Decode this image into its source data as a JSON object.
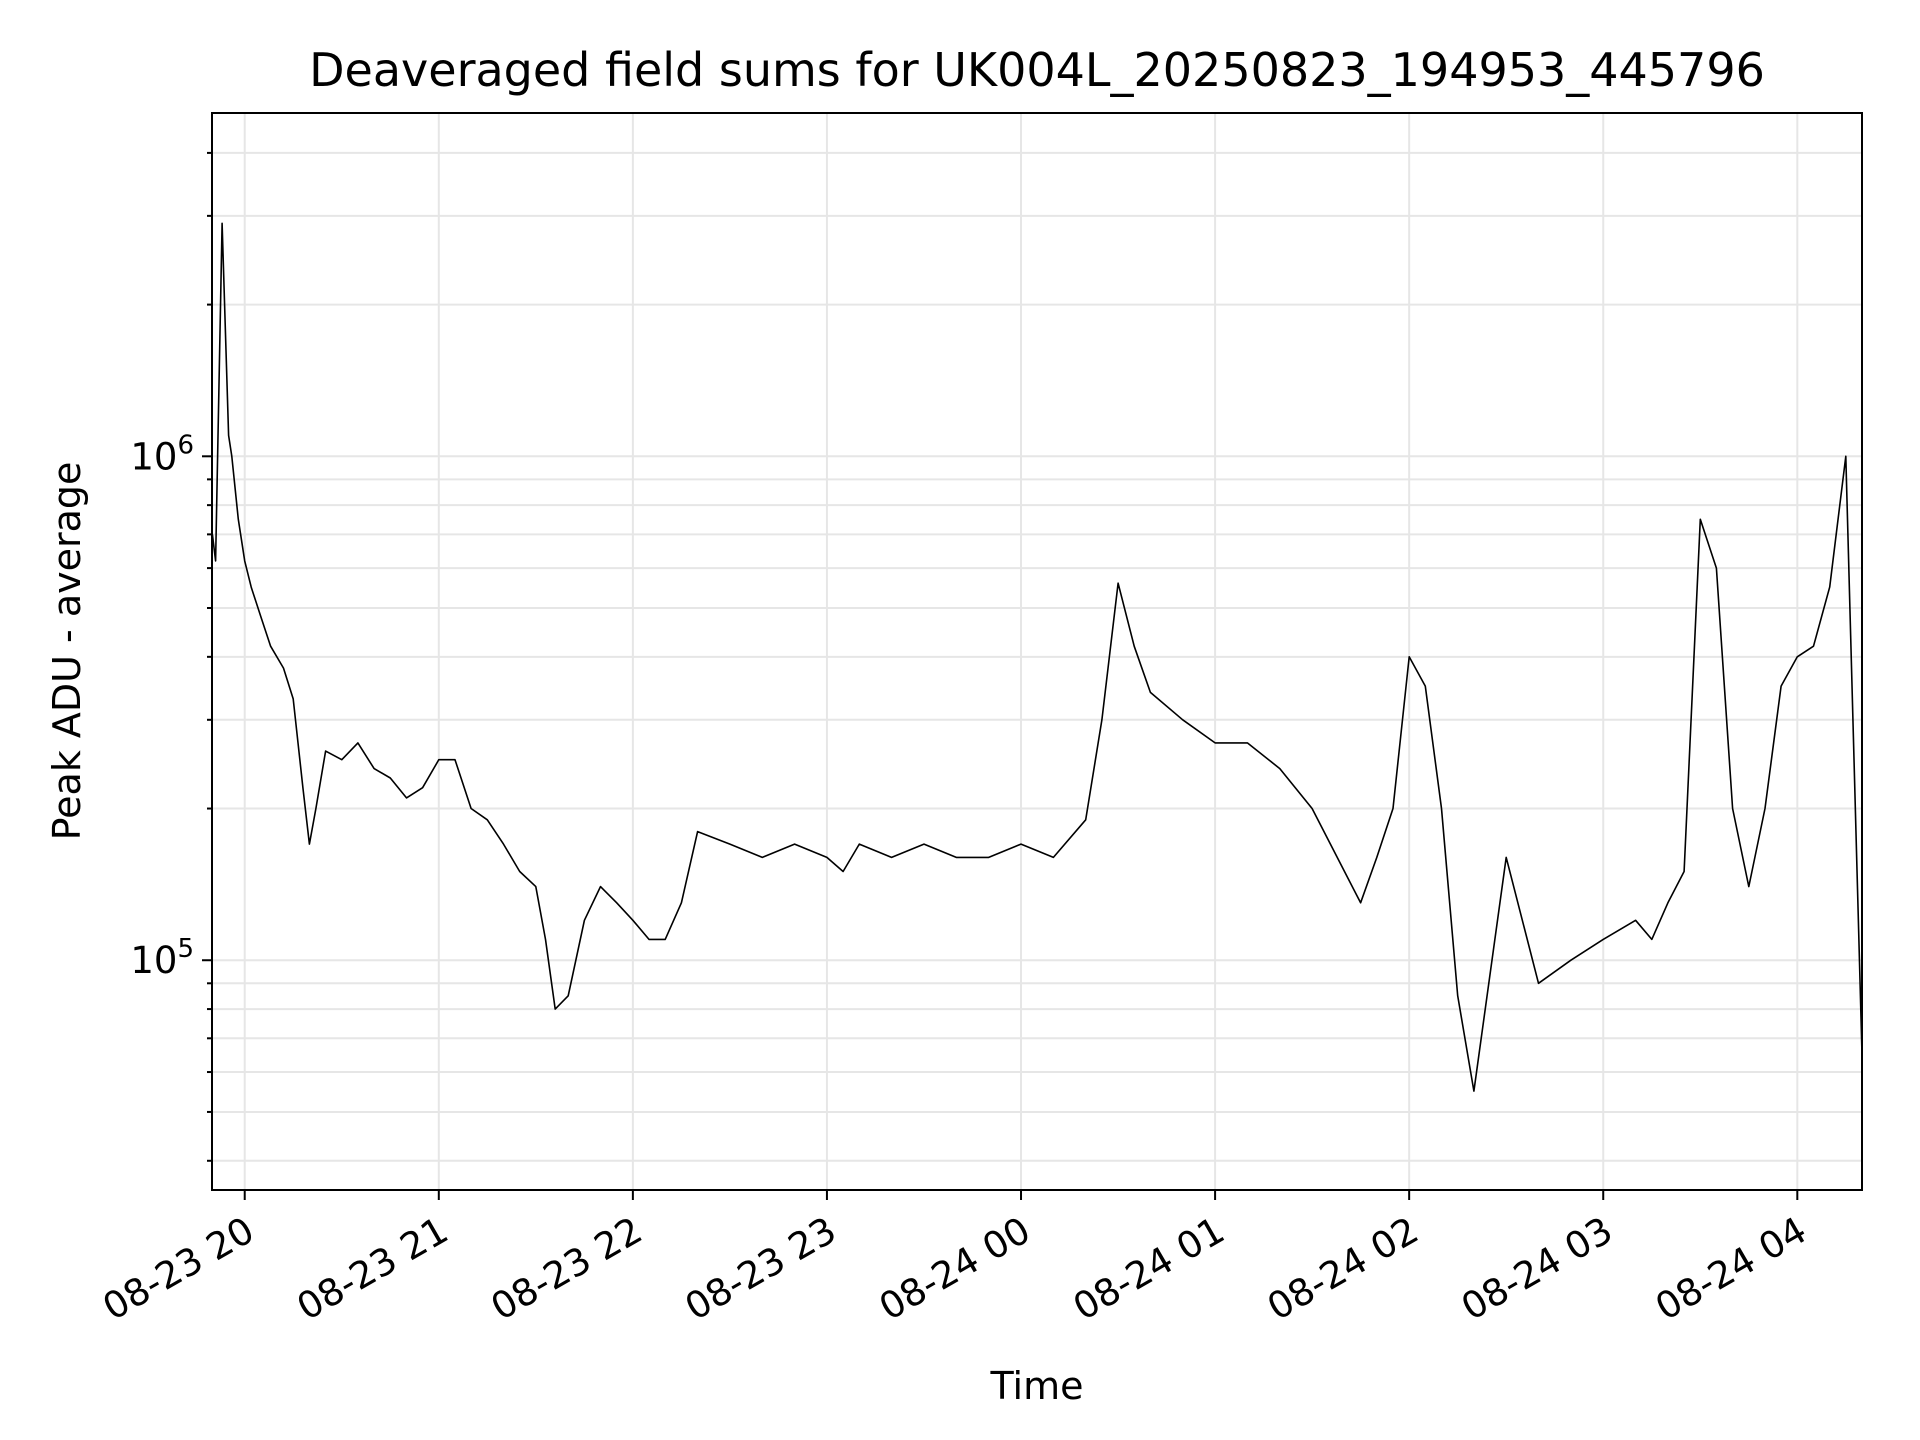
{
  "chart_data": {
    "type": "line",
    "title": "Deaveraged field sums for UK004L_20250823_194953_445796",
    "xlabel": "Time",
    "ylabel": "Peak ADU - average",
    "yscale": "log",
    "ylim": [
      35000,
      4800000
    ],
    "xlim": [
      "2025-08-23 19:49:53",
      "2025-08-24 04:20:00"
    ],
    "grid": true,
    "line_color": "#000000",
    "x_ticks": [
      {
        "time": "2025-08-23 20:00",
        "label": "08-23 20"
      },
      {
        "time": "2025-08-23 21:00",
        "label": "08-23 21"
      },
      {
        "time": "2025-08-23 22:00",
        "label": "08-23 22"
      },
      {
        "time": "2025-08-23 23:00",
        "label": "08-23 23"
      },
      {
        "time": "2025-08-24 00:00",
        "label": "08-24 00"
      },
      {
        "time": "2025-08-24 01:00",
        "label": "08-24 01"
      },
      {
        "time": "2025-08-24 02:00",
        "label": "08-24 02"
      },
      {
        "time": "2025-08-24 03:00",
        "label": "08-24 03"
      },
      {
        "time": "2025-08-24 04:00",
        "label": "08-24 04"
      }
    ],
    "y_ticks": [
      {
        "value": 100000,
        "base": "10",
        "exp": "5"
      },
      {
        "value": 1000000,
        "base": "10",
        "exp": "6"
      }
    ],
    "series": [
      {
        "x": [
          "2025-08-23 19:50",
          "2025-08-23 19:51",
          "2025-08-23 19:53",
          "2025-08-23 19:55",
          "2025-08-23 19:56",
          "2025-08-23 19:58",
          "2025-08-23 20:00",
          "2025-08-23 20:02",
          "2025-08-23 20:05",
          "2025-08-23 20:08",
          "2025-08-23 20:12",
          "2025-08-23 20:15",
          "2025-08-23 20:18",
          "2025-08-23 20:20",
          "2025-08-23 20:22",
          "2025-08-23 20:25",
          "2025-08-23 20:30",
          "2025-08-23 20:35",
          "2025-08-23 20:40",
          "2025-08-23 20:45",
          "2025-08-23 20:50",
          "2025-08-23 20:55",
          "2025-08-23 21:00",
          "2025-08-23 21:05",
          "2025-08-23 21:10",
          "2025-08-23 21:15",
          "2025-08-23 21:20",
          "2025-08-23 21:25",
          "2025-08-23 21:30",
          "2025-08-23 21:33",
          "2025-08-23 21:36",
          "2025-08-23 21:40",
          "2025-08-23 21:45",
          "2025-08-23 21:50",
          "2025-08-23 21:55",
          "2025-08-23 22:00",
          "2025-08-23 22:05",
          "2025-08-23 22:10",
          "2025-08-23 22:15",
          "2025-08-23 22:20",
          "2025-08-23 22:30",
          "2025-08-23 22:40",
          "2025-08-23 22:50",
          "2025-08-23 23:00",
          "2025-08-23 23:05",
          "2025-08-23 23:10",
          "2025-08-23 23:20",
          "2025-08-23 23:30",
          "2025-08-23 23:40",
          "2025-08-23 23:50",
          "2025-08-24 00:00",
          "2025-08-24 00:10",
          "2025-08-24 00:20",
          "2025-08-24 00:25",
          "2025-08-24 00:30",
          "2025-08-24 00:35",
          "2025-08-24 00:40",
          "2025-08-24 00:50",
          "2025-08-24 01:00",
          "2025-08-24 01:10",
          "2025-08-24 01:20",
          "2025-08-24 01:30",
          "2025-08-24 01:40",
          "2025-08-24 01:45",
          "2025-08-24 01:50",
          "2025-08-24 01:55",
          "2025-08-24 02:00",
          "2025-08-24 02:05",
          "2025-08-24 02:10",
          "2025-08-24 02:15",
          "2025-08-24 02:20",
          "2025-08-24 02:30",
          "2025-08-24 02:40",
          "2025-08-24 02:50",
          "2025-08-24 03:00",
          "2025-08-24 03:10",
          "2025-08-24 03:15",
          "2025-08-24 03:20",
          "2025-08-24 03:25",
          "2025-08-24 03:30",
          "2025-08-24 03:35",
          "2025-08-24 03:40",
          "2025-08-24 03:45",
          "2025-08-24 03:50",
          "2025-08-24 03:55",
          "2025-08-24 04:00",
          "2025-08-24 04:05",
          "2025-08-24 04:10",
          "2025-08-24 04:15",
          "2025-08-24 04:20"
        ],
        "y": [
          700000,
          620000,
          2900000,
          1100000,
          1000000,
          750000,
          620000,
          550000,
          480000,
          420000,
          380000,
          330000,
          220000,
          170000,
          200000,
          260000,
          250000,
          270000,
          240000,
          230000,
          210000,
          220000,
          250000,
          250000,
          200000,
          190000,
          170000,
          150000,
          140000,
          110000,
          80000,
          85000,
          120000,
          140000,
          130000,
          120000,
          110000,
          110000,
          130000,
          180000,
          170000,
          160000,
          170000,
          160000,
          150000,
          170000,
          160000,
          170000,
          160000,
          160000,
          170000,
          160000,
          190000,
          300000,
          560000,
          420000,
          340000,
          300000,
          270000,
          270000,
          240000,
          200000,
          150000,
          130000,
          160000,
          200000,
          400000,
          350000,
          200000,
          85000,
          55000,
          160000,
          90000,
          100000,
          110000,
          120000,
          110000,
          130000,
          150000,
          750000,
          600000,
          200000,
          140000,
          200000,
          350000,
          400000,
          420000,
          550000,
          1000000,
          65000
        ]
      }
    ]
  }
}
